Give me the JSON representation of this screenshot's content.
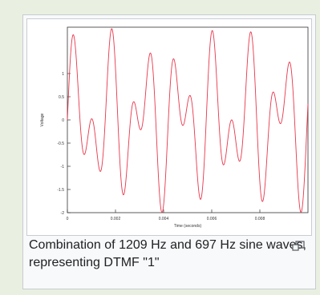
{
  "chart_data": {
    "type": "line",
    "title": "",
    "xlabel": "Time (seconds)",
    "ylabel": "Voltage",
    "xlim": [
      0,
      0.01
    ],
    "ylim": [
      -2,
      2
    ],
    "xticks": [
      "0",
      "0.002",
      "0.004",
      "0.006",
      "0.008"
    ],
    "xtick_values": [
      0,
      0.002,
      0.004,
      0.006,
      0.008
    ],
    "yticks": [
      "1",
      "0.5",
      "0",
      "-0.5",
      "-1",
      "-1.5",
      "-2"
    ],
    "ytick_values": [
      1,
      0.5,
      0,
      -0.5,
      -1,
      -1.5,
      -2
    ],
    "grid": false,
    "series": [
      {
        "frequencies_hz": [
          1209,
          697
        ],
        "function": "sin(2π·1209·t) + sin(2π·697·t)",
        "x_range": [
          0,
          0.01
        ],
        "color": "#e8364b"
      }
    ]
  },
  "caption": {
    "text": "Combination of 1209 Hz and 697 Hz sine waves, representing DTMF \"1\""
  },
  "icons": {
    "magnify": "magnify-clip-icon"
  }
}
